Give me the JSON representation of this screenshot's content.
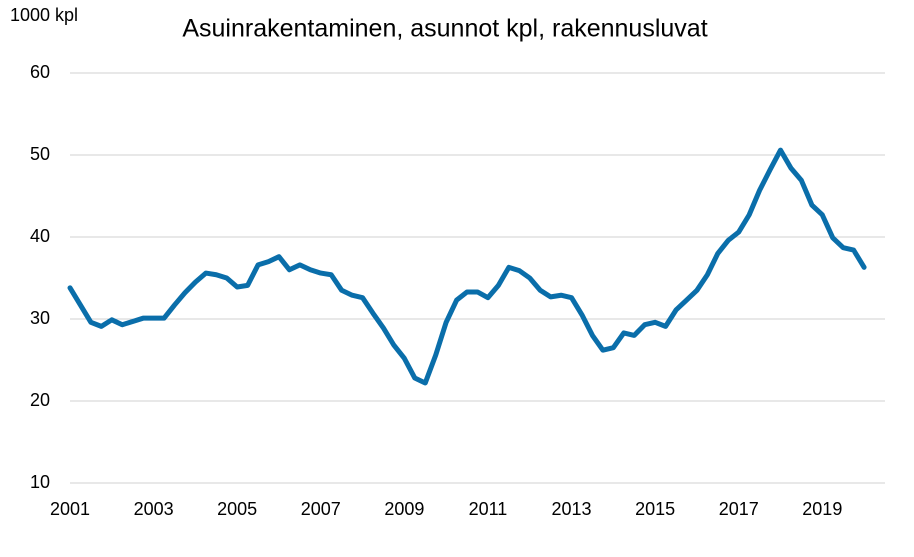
{
  "chart_data": {
    "type": "line",
    "title": "Asuinrakentaminen, asunnot kpl, rakennusluvat",
    "y_label": "1000 kpl",
    "x": [
      2001.0,
      2001.25,
      2001.5,
      2001.75,
      2002.0,
      2002.25,
      2002.5,
      2002.75,
      2003.0,
      2003.25,
      2003.5,
      2003.75,
      2004.0,
      2004.25,
      2004.5,
      2004.75,
      2005.0,
      2005.25,
      2005.5,
      2005.75,
      2006.0,
      2006.25,
      2006.5,
      2006.75,
      2007.0,
      2007.25,
      2007.5,
      2007.75,
      2008.0,
      2008.25,
      2008.5,
      2008.75,
      2009.0,
      2009.25,
      2009.5,
      2009.75,
      2010.0,
      2010.25,
      2010.5,
      2010.75,
      2011.0,
      2011.25,
      2011.5,
      2011.75,
      2012.0,
      2012.25,
      2012.5,
      2012.75,
      2013.0,
      2013.25,
      2013.5,
      2013.75,
      2014.0,
      2014.25,
      2014.5,
      2014.75,
      2015.0,
      2015.25,
      2015.5,
      2015.75,
      2016.0,
      2016.25,
      2016.5,
      2016.75,
      2017.0,
      2017.25,
      2017.5,
      2017.75,
      2018.0,
      2018.25,
      2018.5,
      2018.75,
      2019.0,
      2019.25,
      2019.5,
      2019.75,
      2020.0
    ],
    "series": [
      {
        "name": "Rakennusluvat",
        "color": "#0a6eaa",
        "values": [
          33.8,
          31.7,
          29.6,
          29.1,
          29.9,
          29.3,
          29.7,
          30.1,
          30.1,
          30.1,
          31.7,
          33.2,
          34.5,
          35.6,
          35.4,
          35.0,
          33.9,
          34.1,
          36.6,
          37.0,
          37.6,
          36.0,
          36.6,
          36.0,
          35.6,
          35.4,
          33.5,
          32.9,
          32.6,
          30.7,
          28.9,
          26.8,
          25.2,
          22.8,
          22.2,
          25.6,
          29.6,
          32.3,
          33.3,
          33.3,
          32.6,
          34.1,
          36.3,
          35.9,
          35.0,
          33.5,
          32.7,
          32.9,
          32.6,
          30.5,
          28.0,
          26.2,
          26.5,
          28.3,
          28.0,
          29.3,
          29.6,
          29.1,
          31.1,
          32.3,
          33.5,
          35.4,
          38.0,
          39.6,
          40.6,
          42.7,
          45.7,
          48.2,
          50.6,
          48.4,
          46.9,
          43.9,
          42.7,
          39.9,
          38.7,
          38.4,
          36.3
        ]
      }
    ],
    "xlim": [
      2001,
      2020.5
    ],
    "xticks": [
      2001,
      2003,
      2005,
      2007,
      2009,
      2011,
      2013,
      2015,
      2017,
      2019
    ],
    "ylim": [
      10,
      60
    ],
    "yticks": [
      10,
      20,
      30,
      40,
      50,
      60
    ],
    "grid": true
  }
}
